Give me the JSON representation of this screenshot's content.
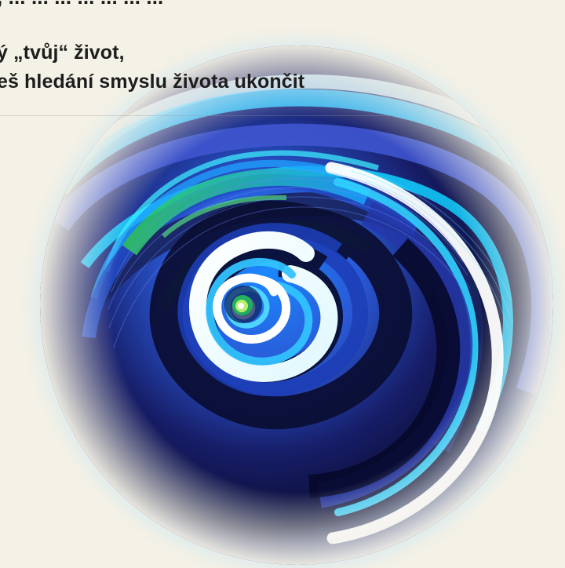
{
  "text": {
    "top_line": ", ... ... ... ... ... ... ...",
    "line_1": "ý „tvůj“ život,",
    "line_2": "eš hledání smyslu života ukončit"
  },
  "illustration": {
    "name": "blue-green-spiral",
    "colors": {
      "background": "#f4f1e6",
      "deep_navy": "#070b2f",
      "royal_blue": "#2637a8",
      "cyan": "#18b6ff",
      "green": "#28b24f",
      "white_highlight": "#ffffff"
    }
  }
}
